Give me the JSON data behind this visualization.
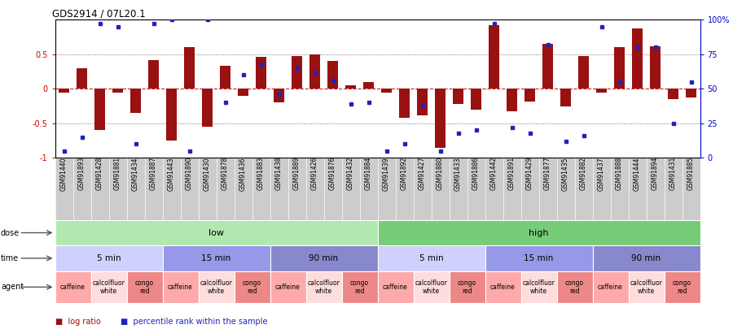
{
  "title": "GDS2914 / 07L20.1",
  "samples": [
    "GSM91440",
    "GSM91893",
    "GSM91428",
    "GSM91881",
    "GSM91434",
    "GSM91887",
    "GSM91443",
    "GSM91890",
    "GSM91430",
    "GSM91878",
    "GSM91436",
    "GSM91883",
    "GSM91438",
    "GSM91889",
    "GSM91426",
    "GSM91876",
    "GSM91432",
    "GSM91884",
    "GSM91439",
    "GSM91892",
    "GSM91427",
    "GSM91880",
    "GSM91433",
    "GSM91886",
    "GSM91442",
    "GSM91891",
    "GSM91429",
    "GSM91877",
    "GSM91435",
    "GSM91882",
    "GSM91437",
    "GSM91888",
    "GSM91444",
    "GSM91894",
    "GSM91431",
    "GSM91885"
  ],
  "log_ratio": [
    -0.05,
    0.3,
    -0.6,
    -0.05,
    -0.35,
    0.42,
    -0.75,
    0.6,
    -0.55,
    0.33,
    -0.1,
    0.46,
    -0.2,
    0.48,
    0.5,
    0.4,
    0.05,
    0.1,
    -0.05,
    -0.42,
    -0.38,
    -0.85,
    -0.22,
    -0.3,
    0.92,
    -0.32,
    -0.18,
    0.65,
    -0.25,
    0.48,
    -0.05,
    0.6,
    0.88,
    0.62,
    -0.15,
    -0.12
  ],
  "percentile": [
    5,
    15,
    97,
    95,
    10,
    97,
    100,
    5,
    100,
    40,
    60,
    68,
    46,
    65,
    62,
    56,
    39,
    40,
    5,
    10,
    38,
    5,
    18,
    20,
    97,
    22,
    18,
    82,
    12,
    16,
    95,
    55,
    80,
    80,
    25,
    55
  ],
  "dose_groups": [
    {
      "label": "low",
      "start": 0,
      "end": 18,
      "color": "#b0e8b0"
    },
    {
      "label": "high",
      "start": 18,
      "end": 36,
      "color": "#77cc77"
    }
  ],
  "time_groups": [
    {
      "label": "5 min",
      "start": 0,
      "end": 6,
      "color": "#d0d0ff"
    },
    {
      "label": "15 min",
      "start": 6,
      "end": 12,
      "color": "#9898e8"
    },
    {
      "label": "90 min",
      "start": 12,
      "end": 18,
      "color": "#8888cc"
    },
    {
      "label": "5 min",
      "start": 18,
      "end": 24,
      "color": "#d0d0ff"
    },
    {
      "label": "15 min",
      "start": 24,
      "end": 30,
      "color": "#9898e8"
    },
    {
      "label": "90 min",
      "start": 30,
      "end": 36,
      "color": "#8888cc"
    }
  ],
  "agent_groups": [
    {
      "label": "caffeine",
      "start": 0,
      "end": 2,
      "color": "#ffaaaa"
    },
    {
      "label": "calcolfluor\nwhite",
      "start": 2,
      "end": 4,
      "color": "#ffdddd"
    },
    {
      "label": "congo\nred",
      "start": 4,
      "end": 6,
      "color": "#ee8888"
    },
    {
      "label": "caffeine",
      "start": 6,
      "end": 8,
      "color": "#ffaaaa"
    },
    {
      "label": "calcolfluor\nwhite",
      "start": 8,
      "end": 10,
      "color": "#ffdddd"
    },
    {
      "label": "congo\nred",
      "start": 10,
      "end": 12,
      "color": "#ee8888"
    },
    {
      "label": "caffeine",
      "start": 12,
      "end": 14,
      "color": "#ffaaaa"
    },
    {
      "label": "calcolfluor\nwhite",
      "start": 14,
      "end": 16,
      "color": "#ffdddd"
    },
    {
      "label": "congo\nred",
      "start": 16,
      "end": 18,
      "color": "#ee8888"
    },
    {
      "label": "caffeine",
      "start": 18,
      "end": 20,
      "color": "#ffaaaa"
    },
    {
      "label": "calcolfluor\nwhite",
      "start": 20,
      "end": 22,
      "color": "#ffdddd"
    },
    {
      "label": "congo\nred",
      "start": 22,
      "end": 24,
      "color": "#ee8888"
    },
    {
      "label": "caffeine",
      "start": 24,
      "end": 26,
      "color": "#ffaaaa"
    },
    {
      "label": "calcolfluor\nwhite",
      "start": 26,
      "end": 28,
      "color": "#ffdddd"
    },
    {
      "label": "congo\nred",
      "start": 28,
      "end": 30,
      "color": "#ee8888"
    },
    {
      "label": "caffeine",
      "start": 30,
      "end": 32,
      "color": "#ffaaaa"
    },
    {
      "label": "calcolfluor\nwhite",
      "start": 32,
      "end": 34,
      "color": "#ffdddd"
    },
    {
      "label": "congo\nred",
      "start": 34,
      "end": 36,
      "color": "#ee8888"
    }
  ],
  "bar_color": "#991111",
  "dot_color": "#2222bb",
  "ylim_left": [
    -1.0,
    1.0
  ],
  "ylim_right": [
    0,
    100
  ],
  "yticks_left": [
    -1.0,
    -0.5,
    0.0,
    0.5
  ],
  "ytick_labels_left": [
    "-1",
    "-0.5",
    "0",
    "0.5"
  ],
  "yticks_right": [
    0,
    25,
    50,
    75,
    100
  ],
  "ytick_labels_right": [
    "0",
    "25",
    "50",
    "75",
    "100%"
  ],
  "hline_color": "#cc2222",
  "dotline_color": "#555555",
  "bg_color": "#ffffff",
  "label_color_left": "#cc0000",
  "label_color_right": "#0000cc",
  "sample_bg_color": "#cccccc",
  "row_label_fontsize": 7,
  "tick_fontsize": 7,
  "sample_fontsize": 5.5
}
